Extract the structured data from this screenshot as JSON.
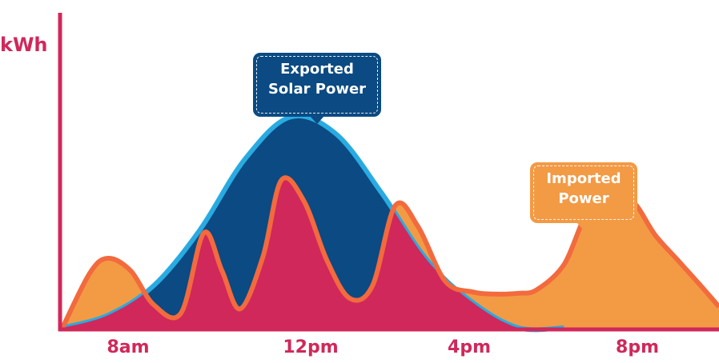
{
  "chart_data": {
    "type": "area",
    "ylabel": "kWh",
    "x_ticks": [
      "8am",
      "12pm",
      "4pm",
      "8pm"
    ],
    "y_ticks_shown": false,
    "grid": false,
    "annotations": [
      {
        "text_lines": [
          "Exported",
          "Solar Power"
        ],
        "points_to": "solar generation peak near 12pm",
        "color": "#0b4a82"
      },
      {
        "text_lines": [
          "Imported",
          "Power"
        ],
        "points_to": "evening consumption peak near 7pm",
        "color": "#f39a45"
      }
    ],
    "series": [
      {
        "role": "solar generation",
        "fill": "#0b4a82",
        "stroke": "#29abe2",
        "x": [
          7.0,
          8.0,
          9.0,
          10.0,
          11.0,
          12.0,
          13.0,
          14.0,
          15.0,
          16.0,
          17.0,
          18.0
        ],
        "y": [
          0.0,
          0.3,
          1.0,
          2.3,
          4.0,
          5.0,
          4.6,
          3.2,
          1.6,
          0.6,
          0.0,
          0.0
        ]
      },
      {
        "role": "household consumption",
        "fill_total": "#f39a45",
        "fill_self_consumed": "#d0285a",
        "stroke": "#f26a3d",
        "x": [
          7.0,
          7.6,
          8.0,
          8.5,
          9.0,
          9.6,
          10.1,
          10.5,
          10.9,
          11.4,
          11.8,
          12.3,
          12.8,
          13.3,
          13.8,
          14.3,
          14.8,
          15.4,
          16.0,
          16.5,
          17.0,
          17.4,
          18.0,
          18.5,
          19.0,
          19.5,
          20.0,
          20.5,
          21.0,
          21.4
        ],
        "y": [
          0.0,
          1.3,
          1.65,
          1.35,
          0.55,
          0.35,
          2.25,
          1.35,
          0.45,
          1.7,
          3.5,
          3.0,
          1.6,
          0.7,
          1.0,
          2.9,
          2.4,
          1.1,
          0.85,
          0.8,
          0.82,
          0.9,
          1.5,
          2.7,
          3.0,
          3.0,
          2.2,
          1.6,
          1.0,
          0.5
        ]
      }
    ],
    "xlim": [
      7.0,
      21.4
    ],
    "ylim": [
      0,
      5.5
    ]
  }
}
